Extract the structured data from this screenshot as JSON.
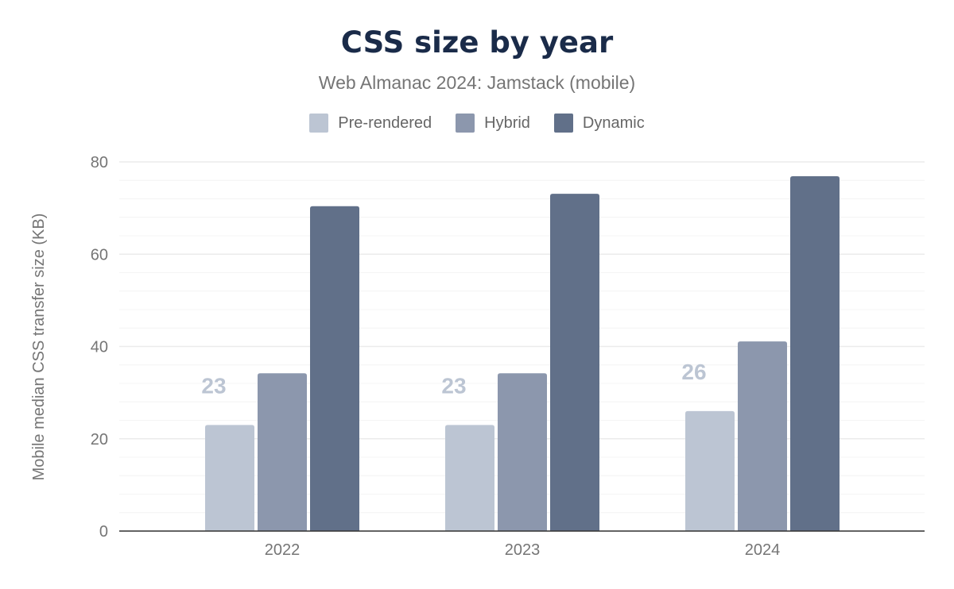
{
  "chart_data": {
    "type": "bar",
    "title": "CSS size by year",
    "subtitle": "Web Almanac 2024: Jamstack (mobile)",
    "xlabel": "",
    "ylabel": "Mobile median CSS transfer size (KB)",
    "ylim": [
      0,
      80
    ],
    "yticks": [
      "0",
      "20",
      "40",
      "60",
      "80"
    ],
    "grid": true,
    "legend_position": "top",
    "categories": [
      "2022",
      "2023",
      "2024"
    ],
    "series": [
      {
        "name": "Pre-rendered",
        "color": "#bcc5d3",
        "values": [
          23,
          23,
          26
        ],
        "data_labels": [
          "23",
          "23",
          "26"
        ]
      },
      {
        "name": "Hybrid",
        "color": "#8c97ad",
        "values": [
          34.2,
          34.2,
          41.1
        ]
      },
      {
        "name": "Dynamic",
        "color": "#617089",
        "values": [
          70.4,
          73.1,
          76.9
        ]
      }
    ]
  }
}
